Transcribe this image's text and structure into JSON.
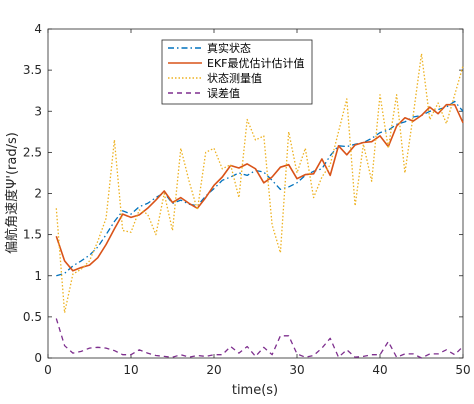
{
  "chart_data": {
    "type": "line",
    "title": "",
    "xlabel": "time(s)",
    "ylabel": "偏航角速度Ψ'(rad/s)",
    "xlim": [
      0,
      50
    ],
    "ylim": [
      0,
      4
    ],
    "xticks": [
      0,
      10,
      20,
      30,
      40,
      50
    ],
    "yticks": [
      0,
      0.5,
      1,
      1.5,
      2,
      2.5,
      3,
      3.5,
      4
    ],
    "grid": false,
    "legend_position": "upper-center",
    "series": [
      {
        "name": "真实状态",
        "color": "#0072BD",
        "dash": "dashdot",
        "x": [
          1,
          2,
          3,
          4,
          5,
          6,
          7,
          8,
          9,
          10,
          11,
          12,
          13,
          14,
          15,
          16,
          17,
          18,
          19,
          20,
          21,
          22,
          23,
          24,
          25,
          26,
          27,
          28,
          29,
          30,
          31,
          32,
          33,
          34,
          35,
          36,
          37,
          38,
          39,
          40,
          41,
          42,
          43,
          44,
          45,
          46,
          47,
          48,
          49,
          50
        ],
        "values": [
          1.0,
          1.03,
          1.12,
          1.18,
          1.25,
          1.35,
          1.5,
          1.66,
          1.79,
          1.75,
          1.84,
          1.88,
          1.95,
          2.01,
          1.88,
          1.92,
          1.87,
          1.85,
          1.97,
          2.06,
          2.16,
          2.2,
          2.25,
          2.22,
          2.28,
          2.26,
          2.16,
          2.05,
          2.08,
          2.13,
          2.22,
          2.27,
          2.3,
          2.46,
          2.58,
          2.57,
          2.6,
          2.62,
          2.67,
          2.74,
          2.77,
          2.84,
          2.87,
          2.93,
          2.95,
          3.0,
          3.02,
          3.05,
          3.12,
          3.0
        ]
      },
      {
        "name": "EKF最优估计估计值",
        "color": "#D95319",
        "dash": "solid",
        "x": [
          1,
          2,
          3,
          4,
          5,
          6,
          7,
          8,
          9,
          10,
          11,
          12,
          13,
          14,
          15,
          16,
          17,
          18,
          19,
          20,
          21,
          22,
          23,
          24,
          25,
          26,
          27,
          28,
          29,
          30,
          31,
          32,
          33,
          34,
          35,
          36,
          37,
          38,
          39,
          40,
          41,
          42,
          43,
          44,
          45,
          46,
          47,
          48,
          49,
          50
        ],
        "values": [
          1.48,
          1.18,
          1.06,
          1.1,
          1.13,
          1.22,
          1.38,
          1.57,
          1.75,
          1.71,
          1.74,
          1.82,
          1.92,
          2.03,
          1.89,
          1.95,
          1.88,
          1.82,
          1.95,
          2.1,
          2.2,
          2.34,
          2.31,
          2.36,
          2.3,
          2.13,
          2.2,
          2.32,
          2.35,
          2.18,
          2.23,
          2.24,
          2.42,
          2.22,
          2.58,
          2.47,
          2.59,
          2.62,
          2.63,
          2.7,
          2.57,
          2.82,
          2.92,
          2.88,
          2.95,
          3.05,
          2.97,
          3.08,
          3.08,
          2.86
        ]
      },
      {
        "name": "状态测量值",
        "color": "#EDB120",
        "dash": "dotted",
        "x": [
          1,
          2,
          3,
          4,
          5,
          6,
          7,
          8,
          9,
          10,
          11,
          12,
          13,
          14,
          15,
          16,
          17,
          18,
          19,
          20,
          21,
          22,
          23,
          24,
          25,
          26,
          27,
          28,
          29,
          30,
          31,
          32,
          33,
          34,
          35,
          36,
          37,
          38,
          39,
          40,
          41,
          42,
          43,
          44,
          45,
          46,
          47,
          48,
          49,
          50
        ],
        "values": [
          1.82,
          0.55,
          1.02,
          1.08,
          1.18,
          1.42,
          1.7,
          2.65,
          1.55,
          1.53,
          1.8,
          1.75,
          1.5,
          2.0,
          1.55,
          2.55,
          2.15,
          1.8,
          2.5,
          2.55,
          2.3,
          2.35,
          1.95,
          2.9,
          2.65,
          2.7,
          1.62,
          1.28,
          2.75,
          2.25,
          2.55,
          1.95,
          2.2,
          2.35,
          2.75,
          3.15,
          1.85,
          2.6,
          2.15,
          3.2,
          2.55,
          3.2,
          2.25,
          2.95,
          3.7,
          2.9,
          3.1,
          2.85,
          3.2,
          3.55
        ]
      },
      {
        "name": "误差值",
        "color": "#7E2F8E",
        "dash": "dashed",
        "x": [
          1,
          2,
          3,
          4,
          5,
          6,
          7,
          8,
          9,
          10,
          11,
          12,
          13,
          14,
          15,
          16,
          17,
          18,
          19,
          20,
          21,
          22,
          23,
          24,
          25,
          26,
          27,
          28,
          29,
          30,
          31,
          32,
          33,
          34,
          35,
          36,
          37,
          38,
          39,
          40,
          41,
          42,
          43,
          44,
          45,
          46,
          47,
          48,
          49,
          50
        ],
        "values": [
          0.48,
          0.15,
          0.06,
          0.08,
          0.12,
          0.13,
          0.12,
          0.09,
          0.04,
          0.04,
          0.1,
          0.06,
          0.03,
          0.02,
          0.01,
          0.04,
          0.01,
          0.03,
          0.02,
          0.04,
          0.04,
          0.14,
          0.06,
          0.14,
          0.02,
          0.13,
          0.04,
          0.27,
          0.27,
          0.05,
          0.01,
          0.03,
          0.12,
          0.24,
          0.01,
          0.1,
          0.01,
          0.02,
          0.04,
          0.04,
          0.2,
          0.01,
          0.05,
          0.05,
          0.0,
          0.05,
          0.05,
          0.1,
          0.04,
          0.14
        ]
      }
    ]
  }
}
